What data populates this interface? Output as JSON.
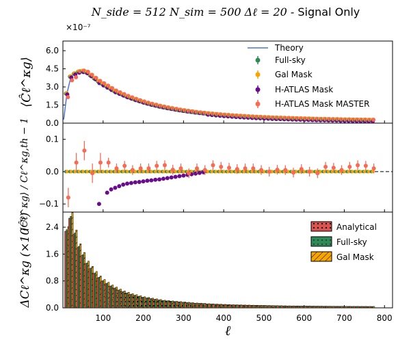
{
  "figure": {
    "title_math": "N_side = 512  N_sim = 500  Δℓ = 20 - ",
    "title_text": "Signal Only",
    "xlabel": "ℓ",
    "xticks": [
      "100",
      "200",
      "300",
      "400",
      "500",
      "600",
      "700",
      "800"
    ]
  },
  "chart_data": [
    {
      "type": "scatter",
      "panel": "top",
      "ylabel": "⟨Ĉℓ^κg⟩",
      "offset_label": "×10⁻⁷",
      "yticks": [
        "0.0",
        "1.5",
        "3.0",
        "4.5",
        "6.0"
      ],
      "ylim": [
        0,
        6.8e-07
      ],
      "xlim": [
        0,
        800
      ],
      "legend": {
        "placement": "upper right",
        "entries": [
          "Theory",
          "Full-sky",
          "Gal Mask",
          "H-ATLAS Mask",
          "H-ATLAS Mask MASTER"
        ]
      },
      "series": [
        {
          "name": "Theory",
          "kind": "line",
          "color": "#4a74d6"
        },
        {
          "name": "Full-sky",
          "kind": "points",
          "color": "#2f8a57"
        },
        {
          "name": "Gal Mask",
          "kind": "points",
          "color": "#f7a400"
        },
        {
          "name": "H-ATLAS Mask",
          "kind": "points",
          "color": "#6a0d8c"
        },
        {
          "name": "H-ATLAS Mask MASTER",
          "kind": "points",
          "color": "#f76a53"
        }
      ],
      "ell": [
        10,
        20,
        30,
        40,
        50,
        60,
        70,
        80,
        90,
        100,
        110,
        120,
        130,
        140,
        150,
        160,
        170,
        180,
        190,
        200,
        210,
        220,
        230,
        240,
        250,
        260,
        270,
        280,
        290,
        300,
        310,
        320,
        330,
        340,
        350,
        360,
        370,
        380,
        390,
        400,
        410,
        420,
        430,
        440,
        450,
        460,
        470,
        480,
        490,
        500,
        510,
        520,
        530,
        540,
        550,
        560,
        570,
        580,
        590,
        600,
        610,
        620,
        630,
        640,
        650,
        660,
        670,
        680,
        690,
        700,
        710,
        720,
        730,
        740,
        750,
        760,
        770
      ],
      "theory": [
        2.45,
        3.85,
        4.1,
        4.25,
        4.3,
        4.2,
        3.95,
        3.7,
        3.45,
        3.25,
        3.05,
        2.85,
        2.65,
        2.5,
        2.35,
        2.2,
        2.08,
        1.96,
        1.85,
        1.74,
        1.64,
        1.55,
        1.47,
        1.39,
        1.32,
        1.25,
        1.19,
        1.13,
        1.07,
        1.02,
        0.97,
        0.93,
        0.88,
        0.84,
        0.81,
        0.77,
        0.74,
        0.71,
        0.68,
        0.65,
        0.63,
        0.6,
        0.58,
        0.56,
        0.54,
        0.52,
        0.5,
        0.48,
        0.47,
        0.45,
        0.44,
        0.42,
        0.41,
        0.4,
        0.39,
        0.38,
        0.37,
        0.36,
        0.35,
        0.34,
        0.33,
        0.32,
        0.31,
        0.3,
        0.3,
        0.29,
        0.28,
        0.28,
        0.27,
        0.26,
        0.26,
        0.25,
        0.25,
        0.24,
        0.24,
        0.23,
        0.23
      ],
      "scale_note": "values ×10⁻⁷"
    },
    {
      "type": "scatter",
      "panel": "middle",
      "ylabel": "⟨Ĉℓ^κg⟩ / Cℓ^κg,th − 1",
      "yticks": [
        "−0.1",
        "0.0",
        "0.1"
      ],
      "ylim": [
        -0.125,
        0.15
      ],
      "reference_line": 0.0,
      "hatlas_ell": [
        90,
        110,
        120,
        130,
        140,
        150,
        160,
        170,
        180,
        190,
        200,
        210,
        220,
        230,
        240,
        250,
        260,
        270,
        280,
        290,
        300,
        310,
        320,
        330,
        340,
        350
      ],
      "hatlas_residual": [
        -0.1,
        -0.065,
        -0.055,
        -0.05,
        -0.045,
        -0.04,
        -0.037,
        -0.035,
        -0.033,
        -0.032,
        -0.03,
        -0.028,
        -0.027,
        -0.025,
        -0.024,
        -0.022,
        -0.02,
        -0.018,
        -0.016,
        -0.014,
        -0.012,
        -0.01,
        -0.008,
        -0.006,
        -0.004,
        -0.002
      ],
      "master_ell": [
        10,
        30,
        50,
        70,
        90,
        110,
        130,
        150,
        170,
        190,
        210,
        230,
        250,
        270,
        290,
        310,
        330,
        350,
        370,
        390,
        410,
        430,
        450,
        470,
        490,
        510,
        530,
        550,
        570,
        590,
        610,
        630,
        650,
        670,
        690,
        710,
        730,
        750,
        770
      ],
      "master_residual": [
        -0.08,
        0.028,
        0.065,
        -0.005,
        0.028,
        0.028,
        0.01,
        0.018,
        0.005,
        0.01,
        0.01,
        0.018,
        0.02,
        0.006,
        0.01,
        -0.005,
        0.01,
        0.005,
        0.02,
        0.015,
        0.012,
        0.008,
        0.01,
        0.01,
        0.005,
        0.0,
        0.006,
        0.005,
        -0.003,
        0.008,
        0.0,
        -0.005,
        0.015,
        0.012,
        0.005,
        0.015,
        0.02,
        0.018,
        0.01
      ]
    },
    {
      "type": "bar",
      "panel": "bottom",
      "ylabel": "ΔCℓ^κg (×10⁻⁸)",
      "yticks": [
        "0.0",
        "0.8",
        "1.6",
        "2.4"
      ],
      "ylim": [
        0,
        2.85
      ],
      "legend": {
        "placement": "upper right",
        "entries": [
          "Analytical",
          "Full-sky",
          "Gal Mask"
        ]
      },
      "series": [
        {
          "name": "Analytical",
          "color": "#d9534f"
        },
        {
          "name": "Full-sky",
          "color": "#2f8a57"
        },
        {
          "name": "Gal Mask",
          "color": "#f7a400"
        }
      ],
      "ell": [
        10,
        20,
        30,
        40,
        50,
        60,
        70,
        80,
        90,
        100,
        110,
        120,
        130,
        140,
        150,
        160,
        170,
        180,
        190,
        200,
        210,
        220,
        230,
        240,
        250,
        260,
        270,
        280,
        290,
        300,
        310,
        320,
        330,
        340,
        350,
        360,
        370,
        380,
        390,
        400,
        410,
        420,
        430,
        440,
        450,
        460,
        470,
        480,
        490,
        500,
        510,
        520,
        530,
        540,
        550,
        560,
        570,
        580,
        590,
        600,
        610,
        620,
        630,
        640,
        650,
        660,
        670,
        680,
        690,
        700,
        710,
        720,
        730,
        740,
        750,
        760,
        770
      ],
      "values": [
        2.35,
        2.75,
        2.25,
        1.85,
        1.6,
        1.35,
        1.2,
        1.05,
        0.92,
        0.82,
        0.74,
        0.66,
        0.6,
        0.54,
        0.49,
        0.45,
        0.41,
        0.38,
        0.35,
        0.32,
        0.3,
        0.28,
        0.26,
        0.24,
        0.22,
        0.21,
        0.2,
        0.19,
        0.18,
        0.17,
        0.16,
        0.15,
        0.14,
        0.135,
        0.13,
        0.12,
        0.115,
        0.11,
        0.105,
        0.1,
        0.095,
        0.09,
        0.088,
        0.085,
        0.082,
        0.08,
        0.077,
        0.075,
        0.072,
        0.07,
        0.068,
        0.066,
        0.064,
        0.062,
        0.06,
        0.058,
        0.057,
        0.056,
        0.055,
        0.054,
        0.053,
        0.052,
        0.051,
        0.05,
        0.049,
        0.048,
        0.047,
        0.046,
        0.045,
        0.044,
        0.044,
        0.043,
        0.043,
        0.042,
        0.042,
        0.041,
        0.041
      ]
    }
  ]
}
